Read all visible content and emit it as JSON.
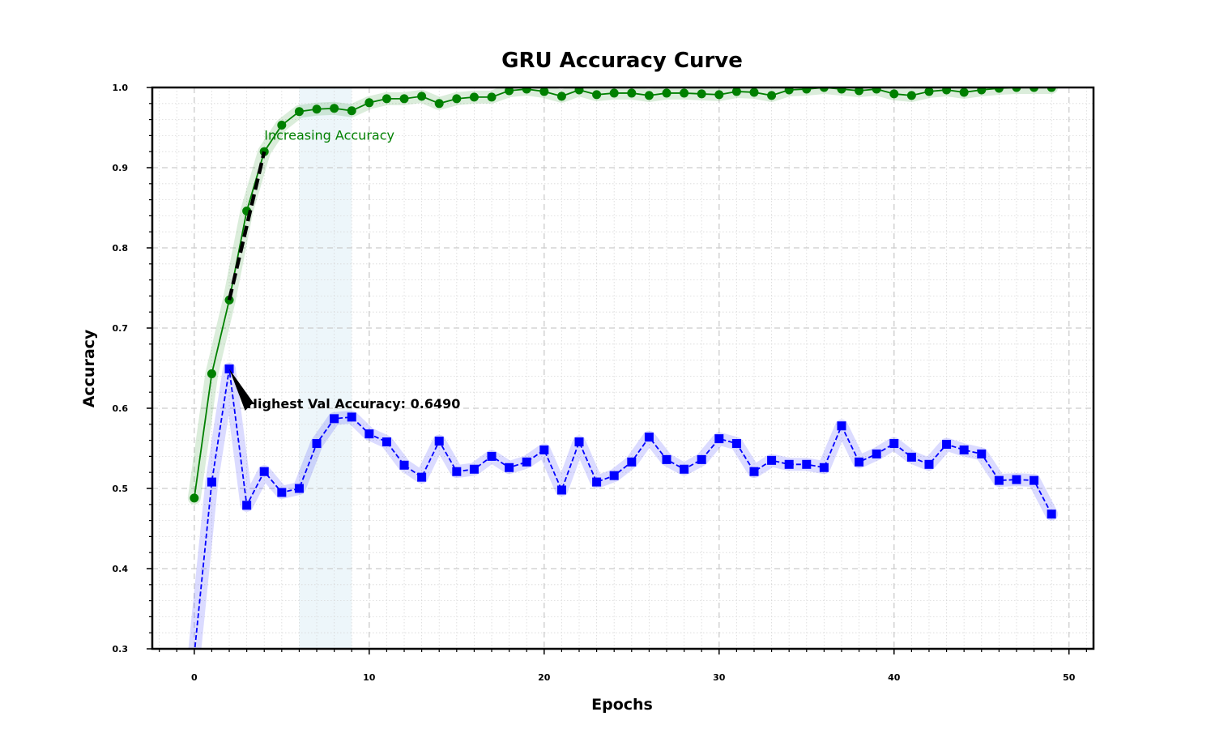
{
  "chart_data": {
    "type": "line",
    "title": "GRU Accuracy Curve",
    "xlabel": "Epochs",
    "ylabel": "Accuracy",
    "xlim": [
      -2.4,
      51.4
    ],
    "ylim": [
      0.3,
      1.0
    ],
    "x_ticks": [
      "0",
      "10",
      "20",
      "30",
      "40",
      "50"
    ],
    "y_ticks": [
      "0.3",
      "0.4",
      "0.5",
      "0.6",
      "0.7",
      "0.8",
      "0.9",
      "1.0"
    ],
    "grid": true,
    "highlight_region": [
      6,
      9
    ],
    "colors": {
      "train": "#008000",
      "val": "#0000ff",
      "highlight": "#add8e6",
      "trend": "#000000"
    },
    "series": [
      {
        "key": "train",
        "marker": "circle",
        "line_style": "solid",
        "x": [
          0,
          1,
          2,
          3,
          4,
          5,
          6,
          7,
          8,
          9,
          10,
          11,
          12,
          13,
          14,
          15,
          16,
          17,
          18,
          19,
          20,
          21,
          22,
          23,
          24,
          25,
          26,
          27,
          28,
          29,
          30,
          31,
          32,
          33,
          34,
          35,
          36,
          37,
          38,
          39,
          40,
          41,
          42,
          43,
          44,
          45,
          46,
          47,
          48,
          49
        ],
        "values": [
          0.488,
          0.643,
          0.735,
          0.846,
          0.92,
          0.953,
          0.97,
          0.973,
          0.974,
          0.971,
          0.981,
          0.986,
          0.986,
          0.989,
          0.98,
          0.986,
          0.988,
          0.988,
          0.996,
          0.998,
          0.995,
          0.989,
          0.997,
          0.991,
          0.993,
          0.993,
          0.99,
          0.993,
          0.993,
          0.992,
          0.991,
          0.995,
          0.994,
          0.99,
          0.997,
          0.998,
          1.0,
          0.998,
          0.996,
          0.998,
          0.992,
          0.99,
          0.995,
          0.997,
          0.994,
          0.997,
          0.999,
          1.0,
          1.0,
          1.0
        ]
      },
      {
        "key": "val",
        "marker": "square",
        "line_style": "dashed",
        "x": [
          0,
          1,
          2,
          3,
          4,
          5,
          6,
          7,
          8,
          9,
          10,
          11,
          12,
          13,
          14,
          15,
          16,
          17,
          18,
          19,
          20,
          21,
          22,
          23,
          24,
          25,
          26,
          27,
          28,
          29,
          30,
          31,
          32,
          33,
          34,
          35,
          36,
          37,
          38,
          39,
          40,
          41,
          42,
          43,
          44,
          45,
          46,
          47,
          48,
          49
        ],
        "values": [
          0.293,
          0.508,
          0.649,
          0.479,
          0.521,
          0.495,
          0.5,
          0.556,
          0.587,
          0.589,
          0.568,
          0.558,
          0.529,
          0.514,
          0.559,
          0.521,
          0.524,
          0.54,
          0.526,
          0.533,
          0.548,
          0.498,
          0.558,
          0.508,
          0.516,
          0.533,
          0.564,
          0.536,
          0.524,
          0.536,
          0.562,
          0.556,
          0.521,
          0.535,
          0.53,
          0.53,
          0.526,
          0.578,
          0.533,
          0.543,
          0.556,
          0.539,
          0.53,
          0.555,
          0.548,
          0.543,
          0.51,
          0.511,
          0.51,
          0.468
        ]
      }
    ],
    "trend_segment": {
      "x": [
        2,
        4
      ],
      "y": [
        0.735,
        0.92
      ]
    },
    "annotations": [
      {
        "key": "best_val",
        "text": "Highest Val Accuracy: 0.6490",
        "point": [
          2,
          0.649
        ],
        "text_pos": [
          3,
          0.6
        ]
      },
      {
        "key": "trend",
        "text": "Increasing Accuracy",
        "text_pos": [
          4,
          0.94
        ]
      }
    ]
  }
}
